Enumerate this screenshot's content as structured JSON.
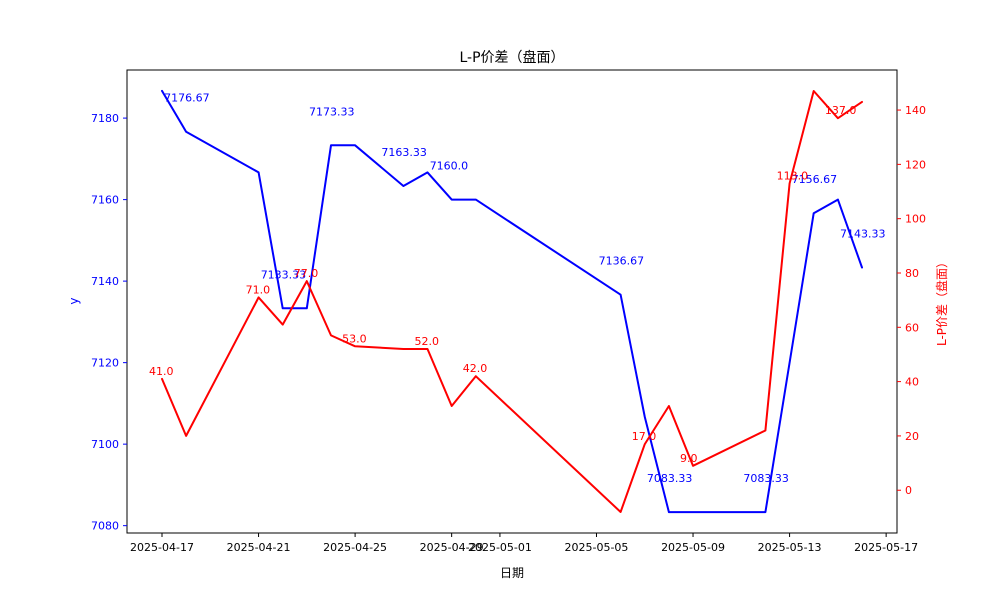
{
  "chart_data": {
    "type": "line",
    "title": "L-P价差（盘面）",
    "xlabel": "日期",
    "ylabel_left": "y",
    "ylabel_right": "L-P价差（盘面）",
    "grid": false,
    "legend": "none",
    "background": "#ffffff",
    "spine_color": "#000000",
    "x_dates": [
      "2025-04-17",
      "2025-04-18",
      "2025-04-21",
      "2025-04-22",
      "2025-04-23",
      "2025-04-24",
      "2025-04-25",
      "2025-04-27",
      "2025-04-28",
      "2025-04-29",
      "2025-04-30",
      "2025-05-06",
      "2025-05-07",
      "2025-05-08",
      "2025-05-09",
      "2025-05-12",
      "2025-05-13",
      "2025-05-14",
      "2025-05-15",
      "2025-05-16"
    ],
    "series": [
      {
        "name": "y",
        "axis": "left",
        "color": "#0000ff",
        "values": [
          7186.67,
          7176.67,
          7166.67,
          7133.33,
          7133.33,
          7173.33,
          7173.33,
          7163.33,
          7166.67,
          7160.0,
          7160.0,
          7136.67,
          7106.67,
          7083.33,
          7083.33,
          7083.33,
          7120.0,
          7156.67,
          7160.0,
          7143.33
        ],
        "point_labels": [
          null,
          "7176.67",
          null,
          "7133.33",
          null,
          "7173.33",
          null,
          "7163.33",
          null,
          "7160.0",
          null,
          "7136.67",
          null,
          "7083.33",
          null,
          "7083.33",
          null,
          "7156.67",
          null,
          "7143.33"
        ]
      },
      {
        "name": "L-P价差（盘面）",
        "axis": "right",
        "color": "#ff0000",
        "values": [
          41,
          20,
          71,
          61,
          77,
          57,
          53,
          52,
          52,
          31,
          42,
          -8,
          17,
          31,
          9,
          22,
          113,
          147,
          137,
          143
        ],
        "point_labels": [
          "41.0",
          null,
          "71.0",
          null,
          "77.0",
          null,
          "53.0",
          null,
          "52.0",
          null,
          "42.0",
          null,
          "17.0",
          null,
          "9.0",
          null,
          "113.0",
          null,
          "137.0",
          null
        ]
      }
    ],
    "x_ticks": [
      "2025-04-17",
      "2025-04-21",
      "2025-04-25",
      "2025-04-29",
      "2025-05-01",
      "2025-05-05",
      "2025-05-09",
      "2025-05-13",
      "2025-05-17"
    ],
    "y_ticks_left": [
      7080,
      7100,
      7120,
      7140,
      7160,
      7180
    ],
    "y_ticks_right": [
      0,
      20,
      40,
      60,
      80,
      100,
      120,
      140
    ],
    "ylim_left": [
      7078.2,
      7191.8
    ],
    "ylim_right": [
      -15.75,
      154.75
    ],
    "xlim_days": [
      -1.45,
      30.45
    ]
  }
}
